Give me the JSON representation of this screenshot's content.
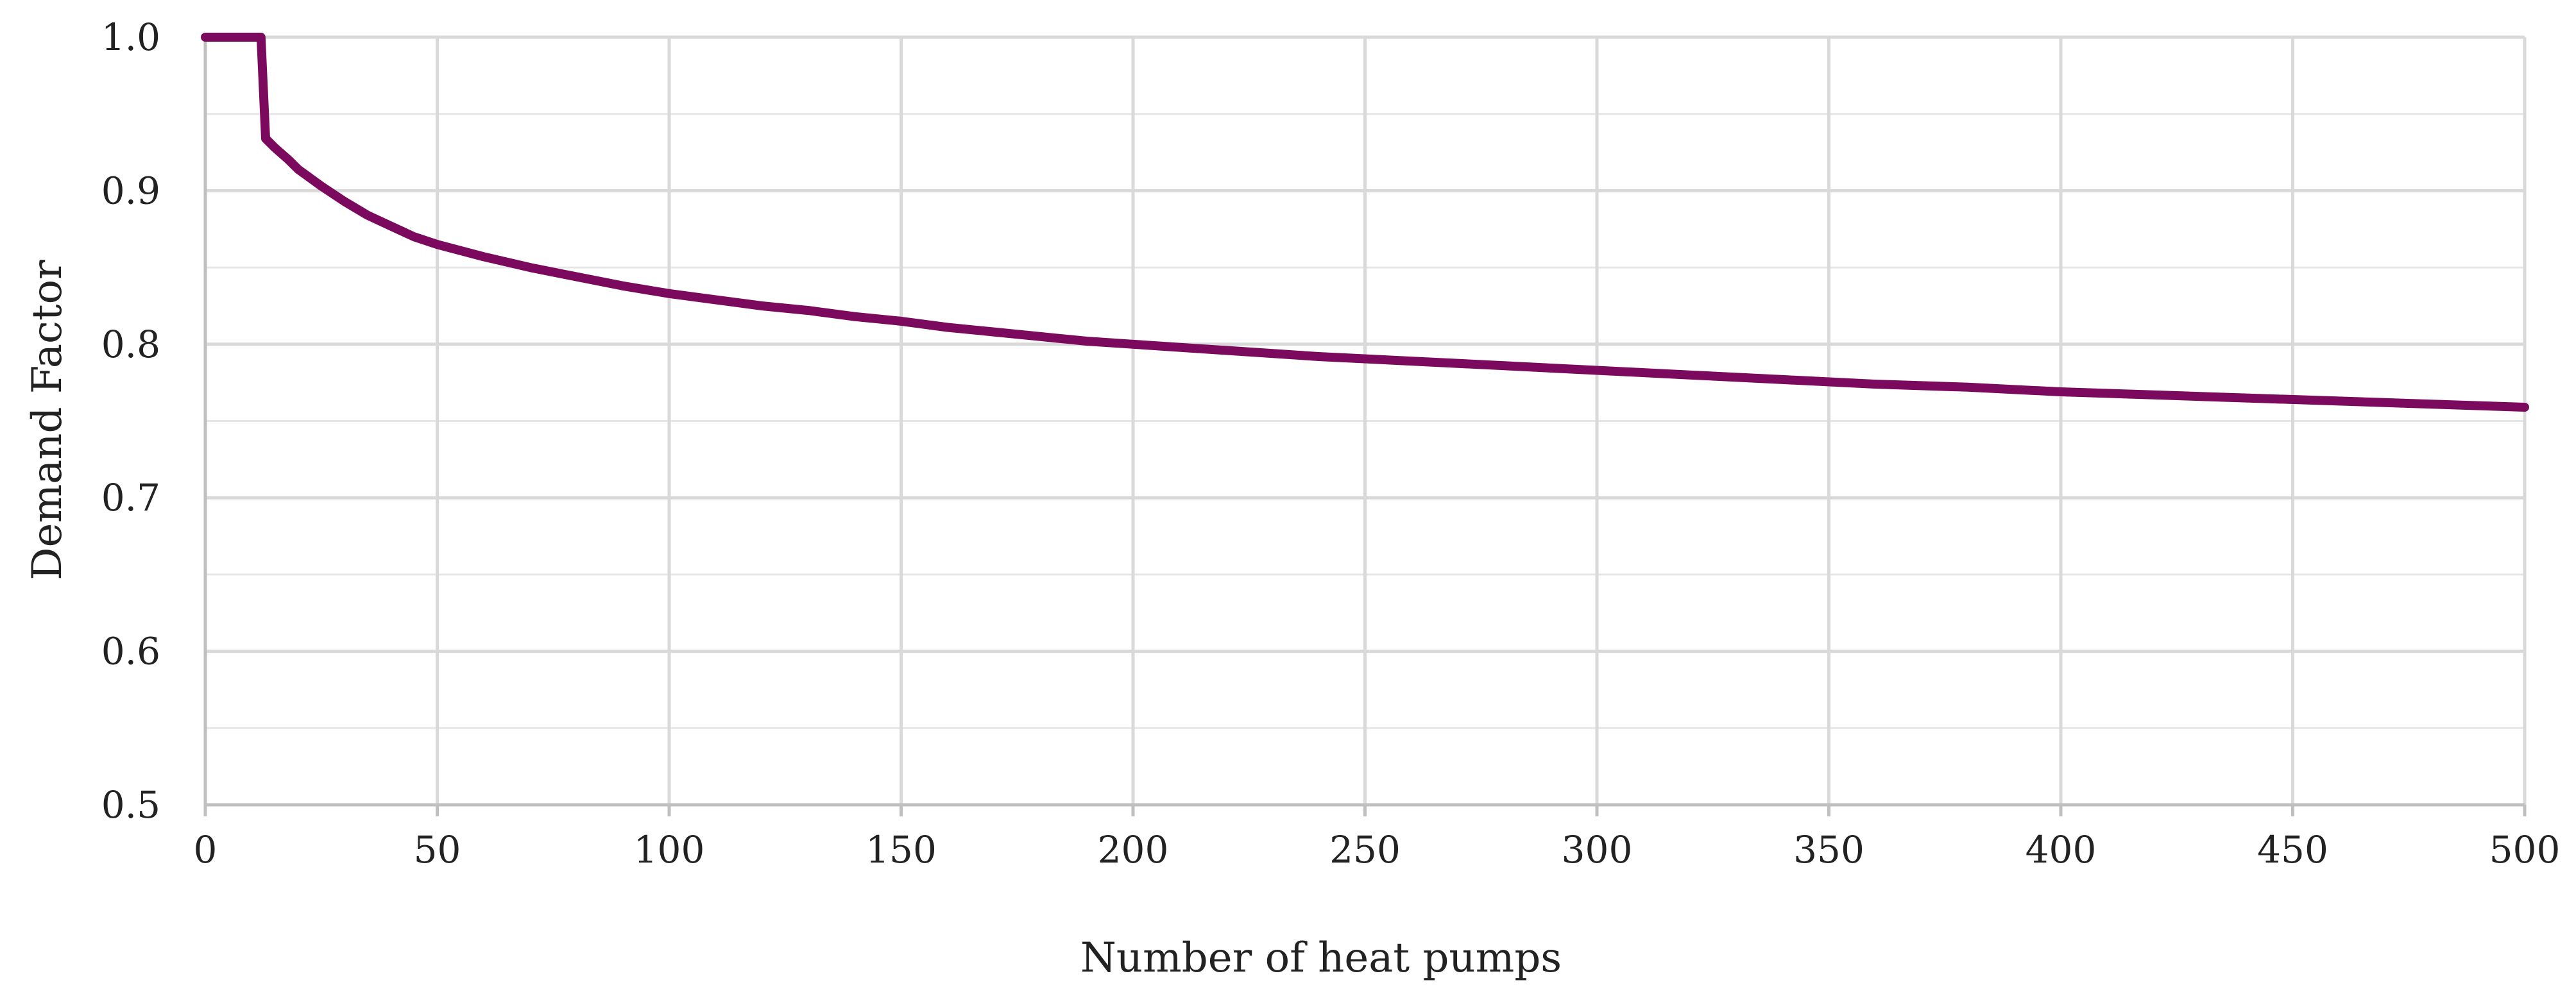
{
  "chart_data": {
    "type": "line",
    "title": "",
    "xlabel": "Number of heat pumps",
    "ylabel": "Demand Factor",
    "xlim": [
      0,
      500
    ],
    "ylim": [
      0.5,
      1.0
    ],
    "x_ticks": [
      0,
      50,
      100,
      150,
      200,
      250,
      300,
      350,
      400,
      450,
      500
    ],
    "x_tick_labels": [
      "0",
      "50",
      "100",
      "150",
      "200",
      "250",
      "300",
      "350",
      "400",
      "450",
      "500"
    ],
    "y_ticks": [
      0.5,
      0.6,
      0.7,
      0.8,
      0.9,
      1.0
    ],
    "y_tick_labels": [
      "0.5",
      "0.6",
      "0.7",
      "0.8",
      "0.9",
      "1.0"
    ],
    "y_minor_ticks": [
      0.55,
      0.65,
      0.75,
      0.85,
      0.95
    ],
    "grid": true,
    "legend": "none",
    "series": [
      {
        "name": "Demand Factor",
        "color": "#7B0A5E",
        "x": [
          0,
          12,
          13,
          15,
          18,
          20,
          25,
          30,
          35,
          40,
          45,
          50,
          60,
          70,
          80,
          90,
          100,
          110,
          120,
          130,
          140,
          150,
          160,
          170,
          180,
          190,
          200,
          220,
          240,
          260,
          280,
          300,
          320,
          340,
          360,
          380,
          400,
          420,
          440,
          460,
          480,
          500
        ],
        "y": [
          1.0,
          1.0,
          0.934,
          0.928,
          0.92,
          0.914,
          0.903,
          0.893,
          0.884,
          0.877,
          0.87,
          0.865,
          0.857,
          0.85,
          0.844,
          0.838,
          0.833,
          0.829,
          0.825,
          0.822,
          0.818,
          0.815,
          0.811,
          0.808,
          0.805,
          0.802,
          0.8,
          0.796,
          0.792,
          0.789,
          0.786,
          0.783,
          0.78,
          0.777,
          0.774,
          0.772,
          0.769,
          0.767,
          0.765,
          0.763,
          0.761,
          0.759
        ]
      }
    ]
  }
}
